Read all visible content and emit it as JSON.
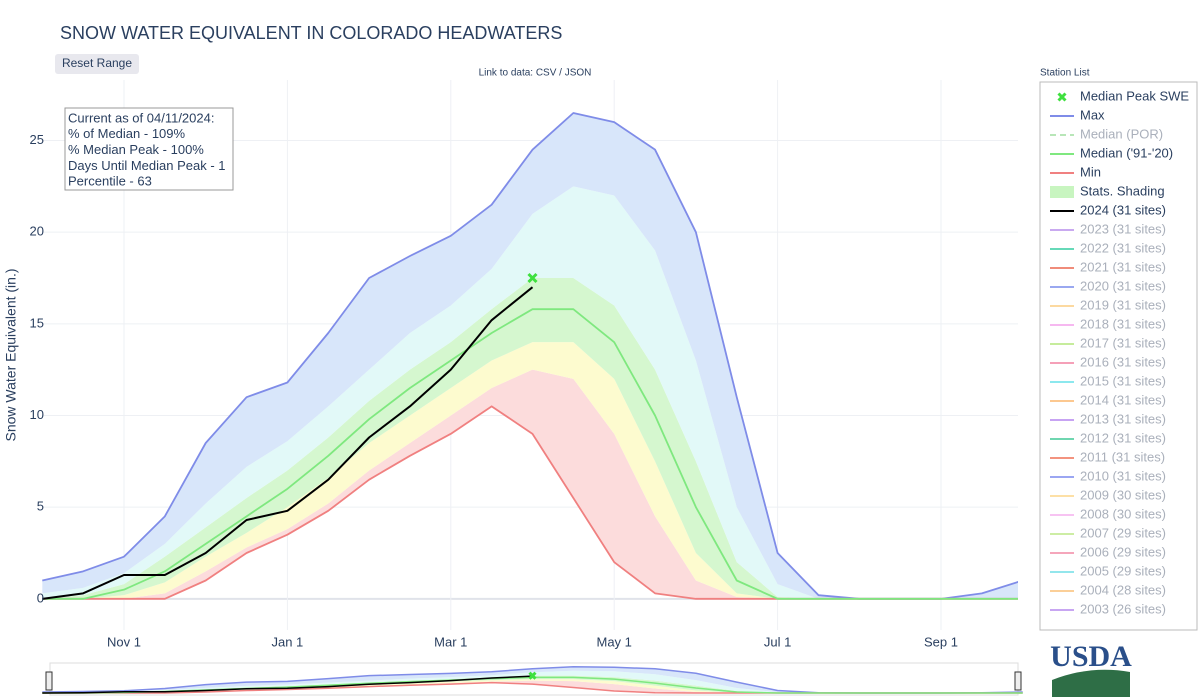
{
  "chart_data": {
    "type": "line",
    "title": "SNOW WATER EQUIVALENT IN COLORADO HEADWATERS",
    "reset_button": "Reset Range",
    "subtitle": "Link to data: CSV / JSON",
    "y_label": "Snow Water Equivalent (in.)",
    "annotation": [
      "Current as of 04/11/2024:",
      "% of Median - 109%",
      "% Median Peak - 100%",
      "Days Until Median Peak - 1",
      "Percentile - 63"
    ],
    "categories": [
      null,
      null,
      "Nov 1",
      null,
      null,
      null,
      "Jan 1",
      null,
      null,
      null,
      "Mar 1",
      null,
      null,
      null,
      "May 1",
      null,
      null,
      null,
      "Jul 1",
      null,
      null,
      null,
      "Sep 1",
      null,
      null
    ],
    "ylim": [
      -1.7,
      28.3
    ],
    "yticks": [
      0,
      5,
      10,
      15,
      20,
      25
    ],
    "grid": true,
    "series": [
      {
        "name": "Max",
        "color": "#7f8ce8",
        "values": [
          1.0,
          1.5,
          2.3,
          4.5,
          8.5,
          11.0,
          11.8,
          14.5,
          17.5,
          18.7,
          19.8,
          21.5,
          24.5,
          26.5,
          26.0,
          24.5,
          20.0,
          11.0,
          2.5,
          0.2,
          0,
          0,
          0,
          0.3,
          1.0
        ]
      },
      {
        "name": "Min",
        "color": "#f08080",
        "values": [
          0,
          0,
          0,
          0,
          1.0,
          2.5,
          3.5,
          4.8,
          6.5,
          7.8,
          9.0,
          10.5,
          9.0,
          5.5,
          2.0,
          0.3,
          0,
          0,
          0,
          0,
          0,
          0,
          0,
          0,
          0
        ]
      },
      {
        "name": "Median ('91-'20)",
        "color": "#7fe87f",
        "values": [
          0,
          0,
          0.5,
          1.5,
          3.0,
          4.5,
          6.0,
          7.8,
          9.8,
          11.5,
          13.0,
          14.5,
          15.8,
          15.8,
          14.0,
          10.0,
          5.0,
          1.0,
          0,
          0,
          0,
          0,
          0,
          0,
          0
        ]
      },
      {
        "name": "2024 (31 sites)",
        "color": "#000000",
        "values": [
          0,
          0.3,
          1.3,
          1.3,
          2.5,
          4.3,
          4.8,
          6.5,
          8.8,
          10.5,
          12.5,
          15.2,
          17.0,
          null,
          null,
          null,
          null,
          null,
          null,
          null,
          null,
          null,
          null,
          null,
          null
        ]
      }
    ],
    "peak": {
      "name": "Median Peak SWE",
      "color": "#3fe03f",
      "values": [
        null,
        null,
        null,
        null,
        null,
        null,
        null,
        null,
        null,
        null,
        null,
        null,
        17.5,
        null,
        null,
        null,
        null,
        null,
        null,
        null,
        null,
        null,
        null,
        null,
        null
      ]
    },
    "shading": {
      "name": "Stats. Shading",
      "legend_color": "#c8f5c0",
      "colors": [
        "#fcdcdc",
        "#fdfbcf",
        "#d5f7cf",
        "#e2f9f8",
        "#d8e6fa"
      ],
      "bands": [
        [
          0,
          0,
          0,
          0.3,
          1.5,
          2.8,
          3.8,
          5.2,
          7.0,
          8.5,
          10.0,
          11.5,
          12.5,
          12.0,
          9.0,
          4.5,
          1.0,
          0.1,
          0,
          0,
          0,
          0,
          0,
          0,
          0
        ],
        [
          0,
          0,
          0.2,
          0.9,
          2.3,
          3.6,
          5.0,
          6.6,
          8.5,
          10.0,
          11.5,
          13.0,
          14.0,
          14.0,
          12.0,
          7.5,
          2.5,
          0.3,
          0,
          0,
          0,
          0,
          0,
          0,
          0
        ],
        [
          0,
          0.2,
          0.8,
          2.3,
          3.9,
          5.5,
          7.0,
          8.8,
          10.8,
          12.5,
          14.0,
          15.8,
          17.5,
          17.5,
          16.0,
          12.5,
          7.5,
          2.0,
          0.1,
          0,
          0,
          0,
          0,
          0,
          0
        ],
        [
          0.3,
          0.6,
          1.4,
          3.0,
          5.2,
          7.2,
          8.6,
          10.5,
          12.5,
          14.5,
          16.0,
          18.0,
          21.0,
          22.5,
          22.0,
          19.0,
          13.0,
          5.0,
          0.8,
          0,
          0,
          0,
          0,
          0,
          0
        ]
      ]
    },
    "legend_title": "Station List",
    "legend_hidden": [
      {
        "name": "Median (POR)",
        "color": "#b8e6b8",
        "dash": true
      },
      {
        "name": "2023 (31 sites)",
        "color": "#c9a9f0"
      },
      {
        "name": "2022 (31 sites)",
        "color": "#66d9b8"
      },
      {
        "name": "2021 (31 sites)",
        "color": "#f08c7a"
      },
      {
        "name": "2020 (31 sites)",
        "color": "#9aa8f0"
      },
      {
        "name": "2019 (31 sites)",
        "color": "#fcd9a0"
      },
      {
        "name": "2018 (31 sites)",
        "color": "#f6b8f0"
      },
      {
        "name": "2017 (31 sites)",
        "color": "#c6ec9c"
      },
      {
        "name": "2016 (31 sites)",
        "color": "#f5a0b8"
      },
      {
        "name": "2015 (31 sites)",
        "color": "#8ce8ee"
      },
      {
        "name": "2014 (31 sites)",
        "color": "#fcc890"
      },
      {
        "name": "2013 (31 sites)",
        "color": "#c7a3f3"
      },
      {
        "name": "2012 (31 sites)",
        "color": "#6fd6b0"
      },
      {
        "name": "2011 (31 sites)",
        "color": "#f3937f"
      },
      {
        "name": "2010 (31 sites)",
        "color": "#9ba6f2"
      },
      {
        "name": "2009 (30 sites)",
        "color": "#fde0a6"
      },
      {
        "name": "2008 (30 sites)",
        "color": "#f7c3f2"
      },
      {
        "name": "2007 (29 sites)",
        "color": "#cdeda4"
      },
      {
        "name": "2006 (29 sites)",
        "color": "#f5a6bb"
      },
      {
        "name": "2005 (29 sites)",
        "color": "#93e6ec"
      },
      {
        "name": "2004 (28 sites)",
        "color": "#fbcf98"
      },
      {
        "name": "2003 (26 sites)",
        "color": "#c8a6f2"
      }
    ],
    "logo": "USDA"
  }
}
